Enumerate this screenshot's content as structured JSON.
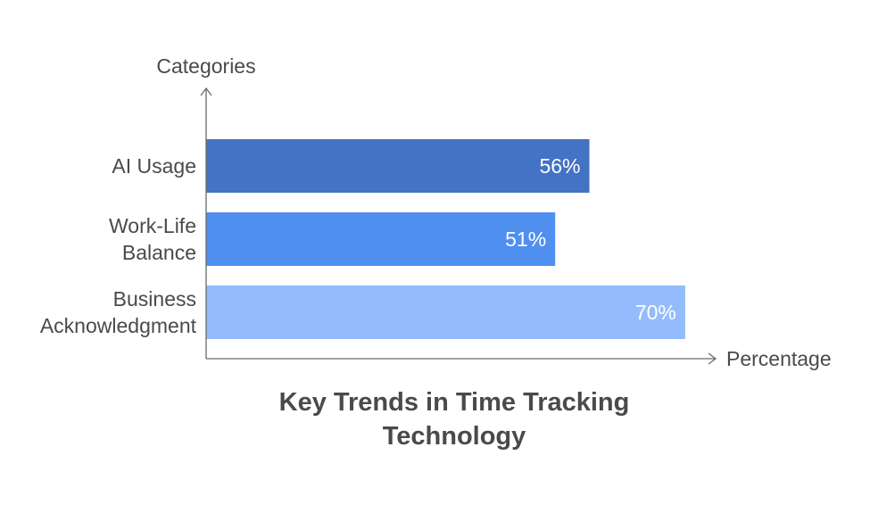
{
  "chart_data": {
    "type": "bar",
    "orientation": "horizontal",
    "title_lines": [
      "Key Trends in Time Tracking",
      "Technology"
    ],
    "xlabel": "Percentage",
    "ylabel": "Categories",
    "categories": [
      [
        "AI Usage"
      ],
      [
        "Work-Life",
        "Balance"
      ],
      [
        "Business",
        "Acknowledgment"
      ]
    ],
    "values": [
      56,
      51,
      70
    ],
    "value_labels": [
      "56%",
      "51%",
      "70%"
    ],
    "colors": [
      "#4472c4",
      "#4f8ff0",
      "#94bcfc"
    ],
    "xlim": [
      0,
      100
    ],
    "grid": false,
    "legend": false
  }
}
